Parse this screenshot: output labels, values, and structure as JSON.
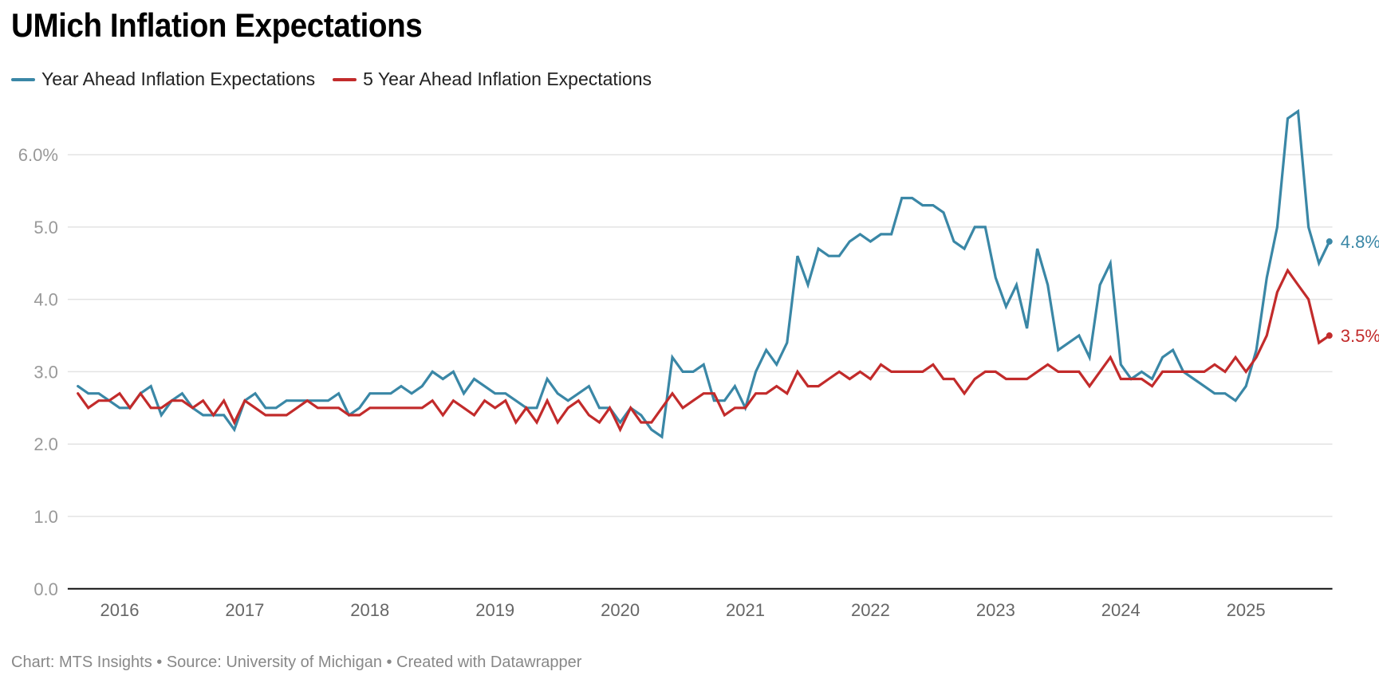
{
  "title": "UMich Inflation Expectations",
  "footer": "Chart: MTS Insights • Source: University of Michigan • Created with Datawrapper",
  "colors": {
    "year_ahead": "#3a87a6",
    "five_year": "#c22b2b",
    "grid": "#e3e3e3",
    "axis": "#111111"
  },
  "chart_data": {
    "type": "line",
    "title": "UMich Inflation Expectations",
    "xlabel": "",
    "ylabel": "",
    "x_start": "2015-09",
    "x_frequency": "monthly",
    "x_ticks": [
      "2016",
      "2017",
      "2018",
      "2019",
      "2020",
      "2021",
      "2022",
      "2023",
      "2024",
      "2025"
    ],
    "y_ticks": [
      "0.0",
      "1.0",
      "2.0",
      "3.0",
      "4.0",
      "5.0",
      "6.0%"
    ],
    "ylim": [
      0,
      6.6
    ],
    "grid": true,
    "legend": "top-left",
    "series": [
      {
        "name": "Year Ahead Inflation Expectations",
        "color": "#3a87a6",
        "end_label": "4.8%",
        "values": [
          2.8,
          2.7,
          2.7,
          2.6,
          2.5,
          2.5,
          2.7,
          2.8,
          2.4,
          2.6,
          2.7,
          2.5,
          2.4,
          2.4,
          2.4,
          2.2,
          2.6,
          2.7,
          2.5,
          2.5,
          2.6,
          2.6,
          2.6,
          2.6,
          2.6,
          2.7,
          2.4,
          2.5,
          2.7,
          2.7,
          2.7,
          2.8,
          2.7,
          2.8,
          3.0,
          2.9,
          3.0,
          2.7,
          2.9,
          2.8,
          2.7,
          2.7,
          2.6,
          2.5,
          2.5,
          2.9,
          2.7,
          2.6,
          2.7,
          2.8,
          2.5,
          2.5,
          2.3,
          2.5,
          2.4,
          2.2,
          2.1,
          3.2,
          3.0,
          3.0,
          3.1,
          2.6,
          2.6,
          2.8,
          2.5,
          3.0,
          3.3,
          3.1,
          3.4,
          4.6,
          4.2,
          4.7,
          4.6,
          4.6,
          4.8,
          4.9,
          4.8,
          4.9,
          4.9,
          5.4,
          5.4,
          5.3,
          5.3,
          5.2,
          4.8,
          4.7,
          5.0,
          5.0,
          4.3,
          3.9,
          4.2,
          3.6,
          4.7,
          4.2,
          3.3,
          3.4,
          3.5,
          3.2,
          4.2,
          4.5,
          3.1,
          2.9,
          3.0,
          2.9,
          3.2,
          3.3,
          3.0,
          2.9,
          2.8,
          2.7,
          2.7,
          2.6,
          2.8,
          3.3,
          4.3,
          5.0,
          6.5,
          6.6,
          5.0,
          4.5,
          4.8
        ]
      },
      {
        "name": "5 Year Ahead Inflation Expectations",
        "color": "#c22b2b",
        "end_label": "3.5%",
        "values": [
          2.7,
          2.5,
          2.6,
          2.6,
          2.7,
          2.5,
          2.7,
          2.5,
          2.5,
          2.6,
          2.6,
          2.5,
          2.6,
          2.4,
          2.6,
          2.3,
          2.6,
          2.5,
          2.4,
          2.4,
          2.4,
          2.5,
          2.6,
          2.5,
          2.5,
          2.5,
          2.4,
          2.4,
          2.5,
          2.5,
          2.5,
          2.5,
          2.5,
          2.5,
          2.6,
          2.4,
          2.6,
          2.5,
          2.4,
          2.6,
          2.5,
          2.6,
          2.3,
          2.5,
          2.3,
          2.6,
          2.3,
          2.5,
          2.6,
          2.4,
          2.3,
          2.5,
          2.2,
          2.5,
          2.3,
          2.3,
          2.5,
          2.7,
          2.5,
          2.6,
          2.7,
          2.7,
          2.4,
          2.5,
          2.5,
          2.7,
          2.7,
          2.8,
          2.7,
          3.0,
          2.8,
          2.8,
          2.9,
          3.0,
          2.9,
          3.0,
          2.9,
          3.1,
          3.0,
          3.0,
          3.0,
          3.0,
          3.1,
          2.9,
          2.9,
          2.7,
          2.9,
          3.0,
          3.0,
          2.9,
          2.9,
          2.9,
          3.0,
          3.1,
          3.0,
          3.0,
          3.0,
          2.8,
          3.0,
          3.2,
          2.9,
          2.9,
          2.9,
          2.8,
          3.0,
          3.0,
          3.0,
          3.0,
          3.0,
          3.1,
          3.0,
          3.2,
          3.0,
          3.2,
          3.5,
          4.1,
          4.4,
          4.2,
          4.0,
          3.4,
          3.5
        ]
      }
    ]
  }
}
